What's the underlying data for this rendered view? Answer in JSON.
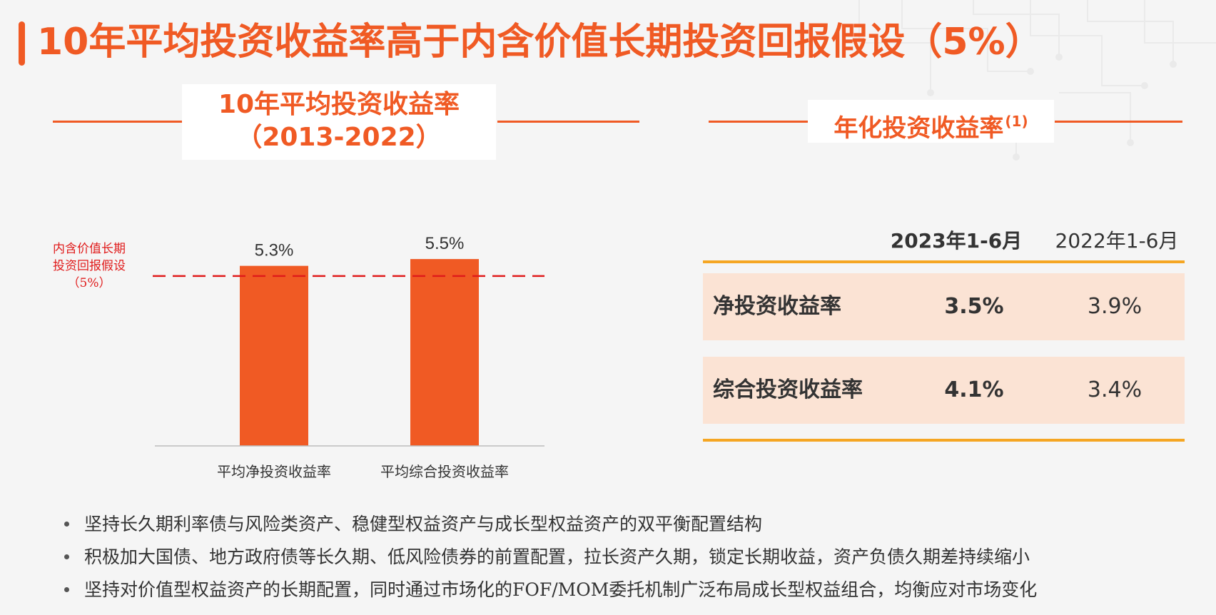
{
  "title": "10年平均投资收益率高于内含价值长期投资回报假设（5%）",
  "left_panel": {
    "heading_line1": "10年平均投资收益率",
    "heading_line2": "（2013-2022）",
    "reference": {
      "label_lines": [
        "内含价值长期",
        "投资回报假设",
        "（5%）"
      ],
      "value": 5.0,
      "color": "#e01b1b"
    }
  },
  "chart_data": {
    "type": "bar",
    "categories": [
      "平均净投资收益率",
      "平均综合投资收益率"
    ],
    "values": [
      5.3,
      5.5
    ],
    "value_labels": [
      "5.3%",
      "5.5%"
    ],
    "ylim": [
      0,
      8.4
    ],
    "bar_color": "#f05a24",
    "grid": false,
    "title": "",
    "xlabel": "",
    "ylabel": ""
  },
  "right_panel": {
    "heading": "年化投资收益率",
    "heading_sup": "(1)",
    "table": {
      "columns": [
        "2023年1-6月",
        "2022年1-6月"
      ],
      "rows": [
        {
          "label": "净投资收益率",
          "values": [
            "3.5%",
            "3.9%"
          ]
        },
        {
          "label": "综合投资收益率",
          "values": [
            "4.1%",
            "3.4%"
          ]
        }
      ]
    }
  },
  "bullets": [
    "坚持长久期利率债与风险类资产、稳健型权益资产与成长型权益资产的双平衡配置结构",
    "积极加大国债、地方政府债等长久期、低风险债券的前置配置，拉长资产久期，锁定长期收益，资产负债久期差持续缩小",
    "坚持对价值型权益资产的长期配置，同时通过市场化的FOF/MOM委托机制广泛布局成长型权益组合，均衡应对市场变化"
  ],
  "colors": {
    "accent": "#f05a24",
    "table_rule": "#f5a623",
    "row_fill": "#fbe3d4"
  }
}
